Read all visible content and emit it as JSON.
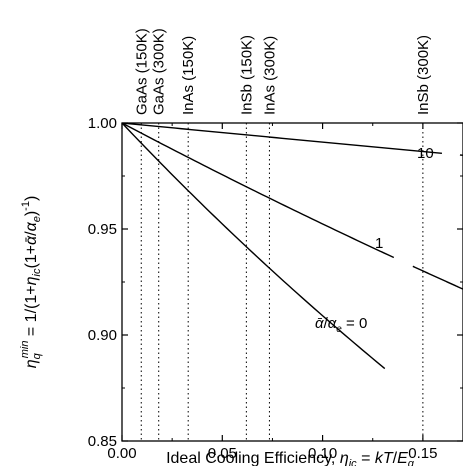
{
  "chart_data": {
    "type": "line",
    "xlabel": "Ideal Cooling Efficiency, η_ic = kT/E_g",
    "ylabel": "η_q^min = 1/(1+η_ic(1+ᾱ/α_e)^-1)",
    "xlim": [
      0.0,
      0.17
    ],
    "ylim": [
      0.85,
      1.0
    ],
    "xticks": [
      "0.00",
      "0.05",
      "0.10",
      "0.15"
    ],
    "xtick_values": [
      0.0,
      0.05,
      0.1,
      0.15
    ],
    "yticks": [
      "0.85",
      "0.90",
      "0.95",
      "1.00"
    ],
    "ytick_values": [
      0.85,
      0.9,
      0.95,
      1.0
    ],
    "grid": false,
    "series": [
      {
        "name": "ᾱ/α_e = 0",
        "param": 0,
        "x": [
          0.0,
          0.05,
          0.1,
          0.15,
          0.17
        ],
        "y": [
          1.0,
          0.952,
          0.909,
          0.87,
          0.855
        ]
      },
      {
        "name": "1",
        "param": 1,
        "x": [
          0.0,
          0.05,
          0.1,
          0.15,
          0.17
        ],
        "y": [
          1.0,
          0.976,
          0.952,
          0.93,
          0.922
        ]
      },
      {
        "name": "10",
        "param": 10,
        "x": [
          0.0,
          0.05,
          0.1,
          0.15,
          0.17
        ],
        "y": [
          1.0,
          0.9955,
          0.991,
          0.9865,
          0.985
        ]
      }
    ],
    "curve_labels": [
      {
        "text": "ᾱ/α_e = 0"
      },
      {
        "text": "1"
      },
      {
        "text": "10"
      }
    ],
    "vlines": [
      {
        "x": 0.0096,
        "label": "GaAs (150K)"
      },
      {
        "x": 0.0183,
        "label": "GaAs (300K)"
      },
      {
        "x": 0.033,
        "label": "InAs (150K)"
      },
      {
        "x": 0.062,
        "label": "InSb (150K)"
      },
      {
        "x": 0.0735,
        "label": "InAs (300K)"
      },
      {
        "x": 0.15,
        "label": "InSb (300K)"
      }
    ],
    "colors": {
      "line": "#000000",
      "background": "#ffffff"
    }
  }
}
